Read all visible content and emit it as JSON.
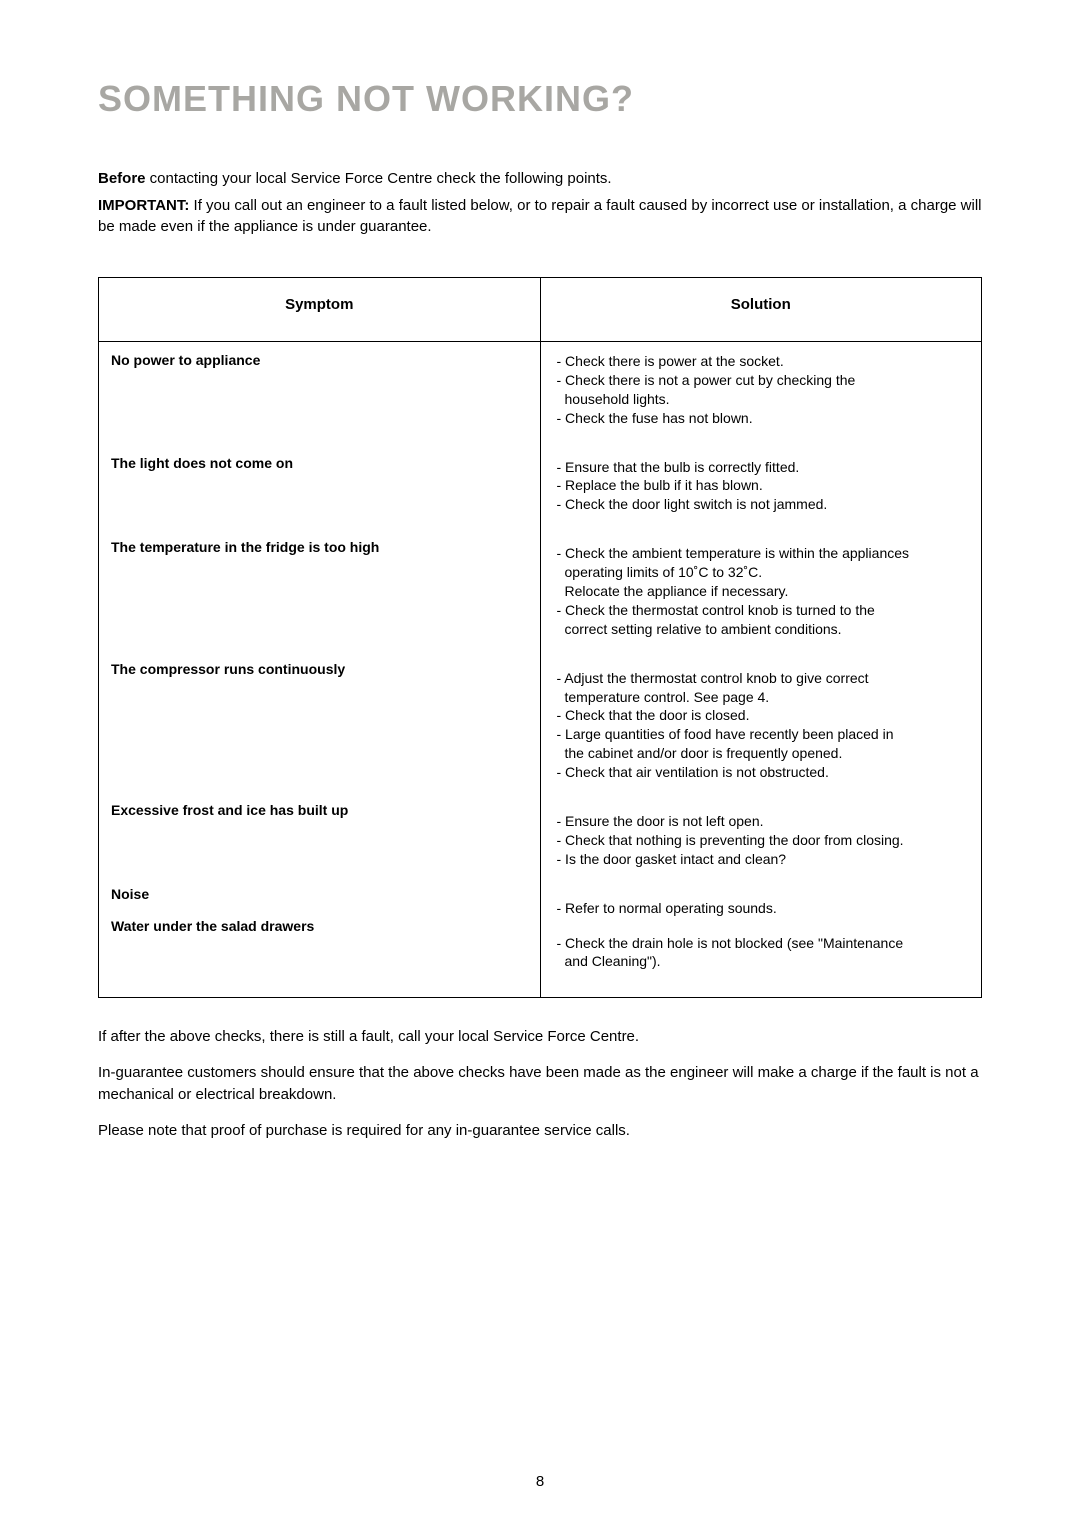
{
  "title": "SOMETHING NOT WORKING?",
  "intro1_bold": "Before",
  "intro1_rest": " contacting your local Service Force Centre check the following points.",
  "intro2_bold": "IMPORTANT:",
  "intro2_rest": " If you call out an engineer to a fault listed below, or to repair a fault caused by incorrect use or installation, a charge will be made even if the appliance is under guarantee.",
  "table": {
    "header_left": "Symptom",
    "header_right": "Solution",
    "rows": [
      {
        "symptom": "No power to appliance",
        "solutions": [
          "- Check there is power at the socket.",
          "- Check there is not a power cut by checking the",
          "  household lights.",
          "- Check the fuse has not blown."
        ],
        "gap": "md"
      },
      {
        "symptom": "The light does not come on",
        "solutions": [
          "- Ensure that the bulb is correctly fitted.",
          "- Replace the bulb if it has blown.",
          "- Check the door light switch is not jammed."
        ],
        "gap": "md"
      },
      {
        "symptom": "The temperature in the fridge is too high",
        "solutions": [
          "- Check the ambient temperature is within the appliances",
          "  operating limits of 10˚C to 32˚C.",
          "  Relocate the appliance if necessary.",
          "- Check the thermostat control knob is turned to the",
          "  correct setting relative to ambient conditions."
        ],
        "gap": "md"
      },
      {
        "symptom": "The compressor runs continuously",
        "solutions": [
          "- Adjust the thermostat control knob to give correct",
          "  temperature control. See page 4.",
          "- Check that the door is closed.",
          "- Large quantities of food have recently been placed in",
          "  the cabinet and/or door is frequently opened.",
          "- Check that air ventilation is not obstructed."
        ],
        "gap": "md"
      },
      {
        "symptom": "Excessive frost and ice has built up",
        "solutions": [
          "- Ensure the door is not left open.",
          "- Check that nothing is preventing the door from closing.",
          "- Is the door gasket intact and clean?"
        ],
        "gap": "md"
      },
      {
        "symptom": "Noise",
        "solutions": [
          "- Refer to normal operating sounds."
        ],
        "gap": "sm"
      },
      {
        "symptom": "Water under the salad drawers",
        "solutions": [
          "- Check the drain hole is not blocked (see \"Maintenance",
          "  and Cleaning\")."
        ],
        "gap": "none"
      }
    ]
  },
  "follow1": "If after the above checks, there is still a fault, call your local Service Force Centre.",
  "follow2": "In-guarantee customers should ensure that the above checks have been made as the engineer will make a charge if the fault is not a mechanical or electrical breakdown.",
  "follow3": "Please note that proof of purchase is required for any in-guarantee service calls.",
  "page_number": "8"
}
